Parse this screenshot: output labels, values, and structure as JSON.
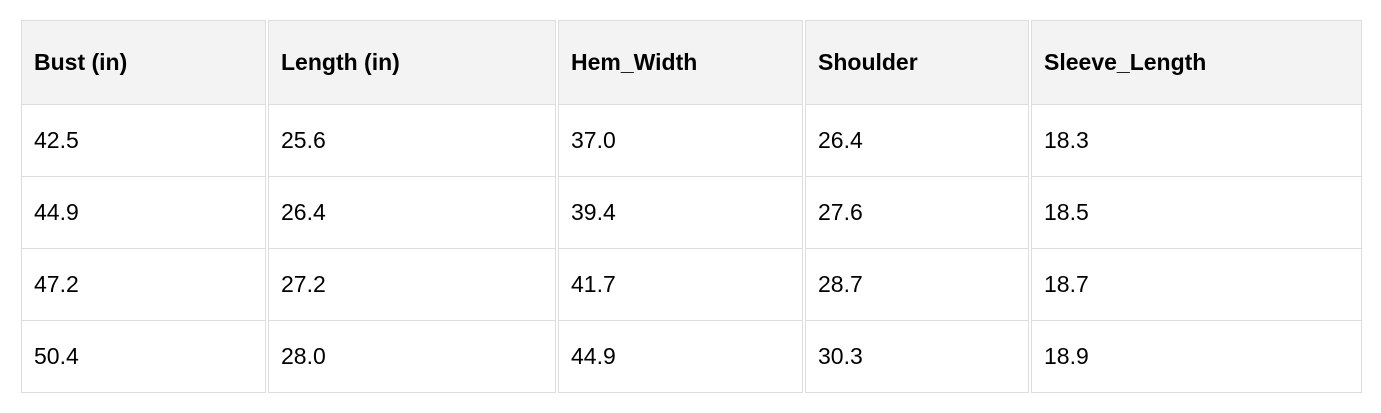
{
  "table": {
    "headers": [
      "Bust (in)",
      "Length (in)",
      "Hem_Width",
      "Shoulder",
      "Sleeve_Length"
    ],
    "rows": [
      [
        "42.5",
        "25.6",
        "37.0",
        "26.4",
        "18.3"
      ],
      [
        "44.9",
        "26.4",
        "39.4",
        "27.6",
        "18.5"
      ],
      [
        "47.2",
        "27.2",
        "41.7",
        "28.7",
        "18.7"
      ],
      [
        "50.4",
        "28.0",
        "44.9",
        "30.3",
        "18.9"
      ]
    ]
  }
}
